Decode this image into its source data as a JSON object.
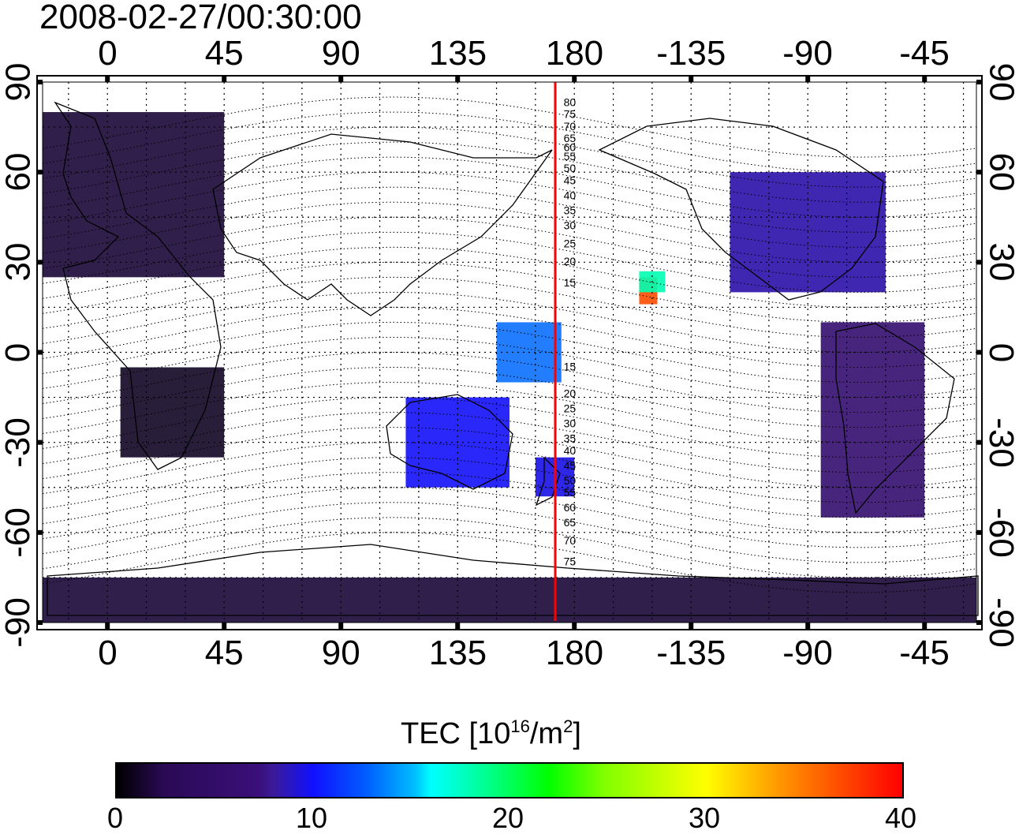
{
  "title": "2008-02-27/00:30:00",
  "lon_ticks": [
    "0",
    "45",
    "90",
    "135",
    "180",
    "-135",
    "-90",
    "-45"
  ],
  "lat_ticks": [
    "90",
    "60",
    "30",
    "0",
    "-30",
    "-60",
    "-90"
  ],
  "contour_labels_north": [
    "80",
    "75",
    "70",
    "65",
    "60",
    "55",
    "50",
    "45",
    "40",
    "35",
    "30",
    "25",
    "20",
    "15"
  ],
  "contour_labels_south": [
    "15",
    "20",
    "25",
    "30",
    "35",
    "40",
    "45",
    "50",
    "55",
    "60",
    "65",
    "70",
    "75"
  ],
  "colorbar": {
    "title_text": "TEC  [10",
    "title_sup1": "16",
    "title_mid": "/m",
    "title_sup2": "2",
    "title_end": "]",
    "min": 0,
    "max": 40,
    "ticks": [
      "0",
      "10",
      "20",
      "30",
      "40"
    ],
    "colors": [
      "#000000",
      "#3a0f7a",
      "#1010ff",
      "#00ffff",
      "#00ff00",
      "#ffff00",
      "#ff0000"
    ]
  },
  "meridian_line": {
    "longitude": 171,
    "color": "#ff0000"
  },
  "chart_data": {
    "type": "heatmap",
    "title": "2008-02-27/00:30:00",
    "xlim": [
      -25,
      335
    ],
    "ylim": [
      -90,
      90
    ],
    "colorbar_label": "TEC [10^16/m^2]",
    "colorbar_range": [
      0,
      40
    ],
    "regions": [
      {
        "lon": [
          -25,
          45
        ],
        "lat": [
          25,
          80
        ],
        "tec": 3
      },
      {
        "lon": [
          5,
          45
        ],
        "lat": [
          -35,
          -5
        ],
        "tec": 2
      },
      {
        "lon": [
          115,
          155
        ],
        "lat": [
          -45,
          -15
        ],
        "tec": 13
      },
      {
        "lon": [
          165,
          180
        ],
        "lat": [
          -48,
          -35
        ],
        "tec": 12
      },
      {
        "lon": [
          240,
          300
        ],
        "lat": [
          20,
          60
        ],
        "tec": 9
      },
      {
        "lon": [
          275,
          315
        ],
        "lat": [
          -55,
          10
        ],
        "tec": 6
      },
      {
        "lon": [
          -25,
          335
        ],
        "lat": [
          -90,
          -75
        ],
        "tec": 3
      },
      {
        "lon": [
          205,
          212
        ],
        "lat": [
          16,
          25
        ],
        "tec": 38
      },
      {
        "lon": [
          205,
          215
        ],
        "lat": [
          20,
          27
        ],
        "tec": 22
      },
      {
        "lon": [
          150,
          175
        ],
        "lat": [
          -10,
          10
        ],
        "tec": 16
      }
    ]
  }
}
